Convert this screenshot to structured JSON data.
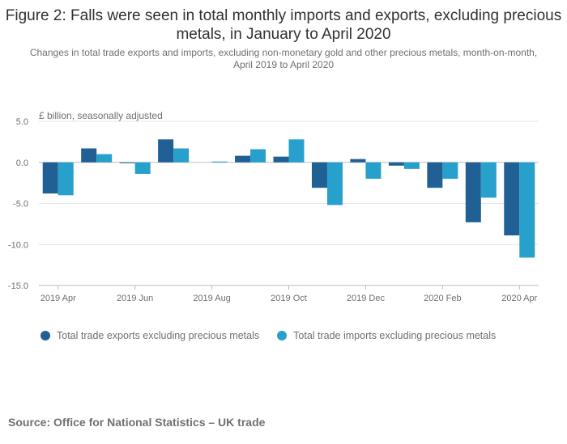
{
  "chart_data": {
    "type": "bar",
    "title": "Figure 2: Falls were seen in total monthly imports and exports, excluding precious metals, in January to April 2020",
    "subtitle": "Changes in total trade exports and imports, excluding non-monetary gold and other precious metals, month-on-month, April 2019 to April 2020",
    "ylabel": "£ billion, seasonally adjusted",
    "ylim": [
      -15,
      5
    ],
    "yticks": [
      "5.0",
      "0.0",
      "-5.0",
      "-10.0",
      "-15.0"
    ],
    "ytick_values": [
      5,
      0,
      -5,
      -10,
      -15
    ],
    "categories": [
      "2019 Apr",
      "2019 May",
      "2019 Jun",
      "2019 Jul",
      "2019 Aug",
      "2019 Sep",
      "2019 Oct",
      "2019 Nov",
      "2019 Dec",
      "2020 Jan",
      "2020 Feb",
      "2020 Mar",
      "2020 Apr"
    ],
    "xtick_labels": [
      "2019 Apr",
      "",
      "2019 Jun",
      "",
      "2019 Aug",
      "",
      "2019 Oct",
      "",
      "2019 Dec",
      "",
      "2020 Feb",
      "",
      "2020 Apr"
    ],
    "series": [
      {
        "name": "Total trade exports excluding precious metals",
        "color": "#206095",
        "values": [
          -3.8,
          1.7,
          -0.1,
          2.8,
          0.0,
          0.8,
          0.7,
          -3.1,
          0.4,
          -0.4,
          -3.1,
          -7.3,
          -8.9
        ]
      },
      {
        "name": "Total trade imports excluding precious metals",
        "color": "#27a0cc",
        "values": [
          -4.0,
          1.0,
          -1.4,
          1.7,
          0.1,
          1.6,
          2.8,
          -5.2,
          -2.0,
          -0.8,
          -2.0,
          -4.3,
          -11.6
        ]
      }
    ],
    "grid": true,
    "legend": "bottom-left"
  },
  "source": "Source: Office for National Statistics – UK trade"
}
